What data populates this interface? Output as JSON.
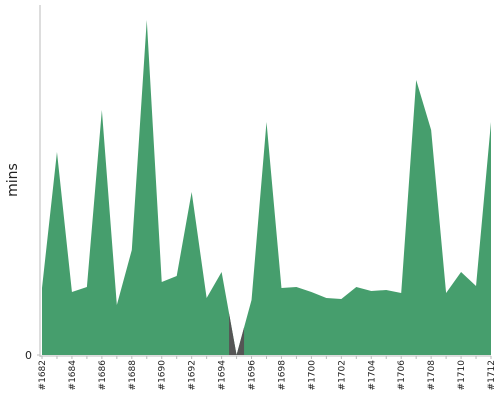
{
  "chart_data": {
    "type": "area",
    "y_label": "mins",
    "categories": [
      "#1682",
      null,
      "#1684",
      null,
      "#1686",
      null,
      "#1688",
      null,
      "#1690",
      null,
      "#1692",
      null,
      "#1694",
      null,
      "#1696",
      null,
      "#1698",
      null,
      "#1700",
      null,
      "#1702",
      null,
      "#1704",
      null,
      "#1706",
      null,
      "#1708",
      null,
      "#1710",
      null,
      "#1712"
    ],
    "values": [
      6.7,
      20.3,
      6.3,
      6.8,
      24.5,
      5.0,
      10.5,
      33.5,
      7.3,
      7.9,
      16.3,
      5.7,
      8.3,
      0,
      5.5,
      23.3,
      6.7,
      6.8,
      6.3,
      5.7,
      5.6,
      6.8,
      6.4,
      6.5,
      6.2,
      27.5,
      22.5,
      6.2,
      8.3,
      6.9,
      23.3
    ],
    "color": "#469e6d",
    "failed_color": "#555555",
    "failed_indices": [
      13
    ],
    "ylim": [
      0,
      35
    ],
    "yticks": [
      0
    ]
  }
}
